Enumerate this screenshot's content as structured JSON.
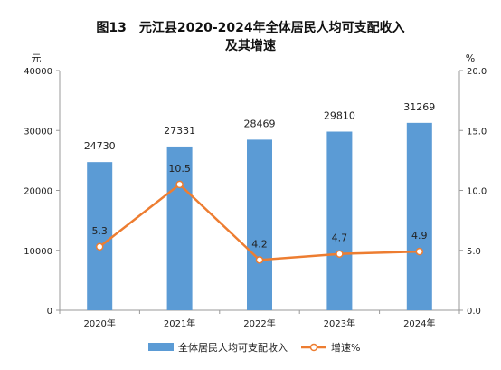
{
  "chart_data": {
    "figure_label": "图13",
    "title_line1": "元江县2020-2024年全体居民人均可支配收入",
    "title_line2": "及其增速",
    "type": "bar+line",
    "categories": [
      "2020年",
      "2021年",
      "2022年",
      "2023年",
      "2024年"
    ],
    "series": [
      {
        "name": "全体居民人均可支配收入",
        "type": "bar",
        "axis": "left",
        "color": "#5b9bd5",
        "values": [
          24730,
          27331,
          28469,
          29810,
          31269
        ]
      },
      {
        "name": "增速%",
        "type": "line",
        "axis": "right",
        "color": "#ed7d31",
        "values": [
          5.3,
          10.5,
          4.2,
          4.7,
          4.9
        ]
      }
    ],
    "y_left": {
      "unit": "元",
      "ylim": [
        0,
        40000
      ],
      "ticks": [
        "0",
        "10000",
        "20000",
        "30000",
        "40000"
      ]
    },
    "y_right": {
      "unit": "%",
      "ylim": [
        0,
        20
      ],
      "ticks": [
        "0.0",
        "5.0",
        "10.0",
        "15.0",
        "20.0"
      ]
    },
    "grid": false,
    "legend": "bottom-center"
  }
}
